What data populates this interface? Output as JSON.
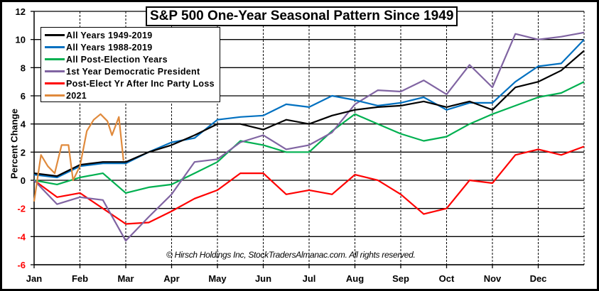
{
  "chart_data": {
    "type": "line",
    "title": "S&P 500 One-Year Seasonal Pattern Since 1949",
    "ylabel": "Percent Change",
    "xlabel": "",
    "ylim": [
      -6,
      12
    ],
    "yticks": [
      "-6",
      "-4",
      "-2",
      "0",
      "2",
      "4",
      "6",
      "8",
      "10",
      "12"
    ],
    "negative_tick_color": "#ff0000",
    "xticks": [
      "Jan",
      "Feb",
      "Mar",
      "Apr",
      "May",
      "Jun",
      "Jul",
      "Aug",
      "Sep",
      "Oct",
      "Nov",
      "Dec"
    ],
    "grid": "horizontal solid, vertical dashed at month boundaries",
    "legend_position": "top-left",
    "x": [
      0,
      0.5,
      1,
      1.5,
      2,
      2.5,
      3,
      3.5,
      4,
      4.5,
      5,
      5.5,
      6,
      6.5,
      7,
      7.5,
      8,
      8.5,
      9,
      9.5,
      10,
      10.5,
      11,
      11.5,
      12
    ],
    "series": [
      {
        "name": "All Years 1949-2019",
        "color": "#000000",
        "values": [
          0.5,
          0.3,
          1.1,
          1.3,
          1.3,
          2.0,
          2.5,
          3.2,
          4.0,
          4.0,
          3.6,
          4.3,
          4.0,
          4.6,
          5.0,
          5.2,
          5.3,
          5.6,
          5.2,
          5.6,
          5.0,
          6.6,
          7.0,
          7.8,
          9.2
        ]
      },
      {
        "name": "All Years 1988-2019",
        "color": "#0070c0",
        "values": [
          0.4,
          0.2,
          1.0,
          1.2,
          1.2,
          2.0,
          2.7,
          3.0,
          4.3,
          4.5,
          4.6,
          5.4,
          5.2,
          6.0,
          5.7,
          5.3,
          5.5,
          5.9,
          5.0,
          5.5,
          5.5,
          7.0,
          8.1,
          8.3,
          10.0
        ]
      },
      {
        "name": "All Post-Election Years",
        "color": "#00b050",
        "values": [
          0,
          -0.3,
          0.2,
          0.5,
          -0.9,
          -0.5,
          -0.3,
          0.5,
          1.3,
          2.8,
          2.5,
          2.0,
          2.0,
          3.5,
          4.7,
          4.0,
          3.3,
          2.8,
          3.1,
          4.0,
          4.7,
          5.3,
          5.9,
          6.2,
          7.0
        ]
      },
      {
        "name": "1st Year Democratic President",
        "color": "#8064a2",
        "values": [
          0,
          -1.7,
          -1.2,
          -1.4,
          -4.3,
          -2.6,
          -1.0,
          1.3,
          1.5,
          2.7,
          3.2,
          2.2,
          2.5,
          3.4,
          5.4,
          6.4,
          6.3,
          7.1,
          6.1,
          8.2,
          6.6,
          10.4,
          10.0,
          10.2,
          10.5
        ]
      },
      {
        "name": "Post-Elect Yr After Inc Party Loss",
        "color": "#ff0000",
        "values": [
          0,
          -1.2,
          -0.9,
          -2.0,
          -3.1,
          -3.0,
          -2.2,
          -1.3,
          -0.7,
          0.5,
          0.5,
          -1.0,
          -0.7,
          -1.0,
          0.4,
          0,
          -1.0,
          -2.4,
          -2.0,
          0,
          -0.2,
          1.8,
          2.2,
          1.8,
          2.4
        ]
      },
      {
        "name": "2021",
        "color": "#e08a3c",
        "x": [
          0,
          0.15,
          0.3,
          0.45,
          0.6,
          0.75,
          0.85,
          1.0,
          1.15,
          1.3,
          1.45,
          1.6,
          1.7,
          1.85,
          1.95
        ],
        "values": [
          -1.5,
          1.8,
          1.0,
          0.5,
          2.5,
          2.5,
          0,
          1.0,
          3.5,
          4.3,
          4.7,
          4.2,
          3.2,
          4.5,
          1.4
        ]
      }
    ],
    "annotation": "© Hirsch Holdings Inc, StockTradersAlmanac.com. All rights reserved."
  }
}
